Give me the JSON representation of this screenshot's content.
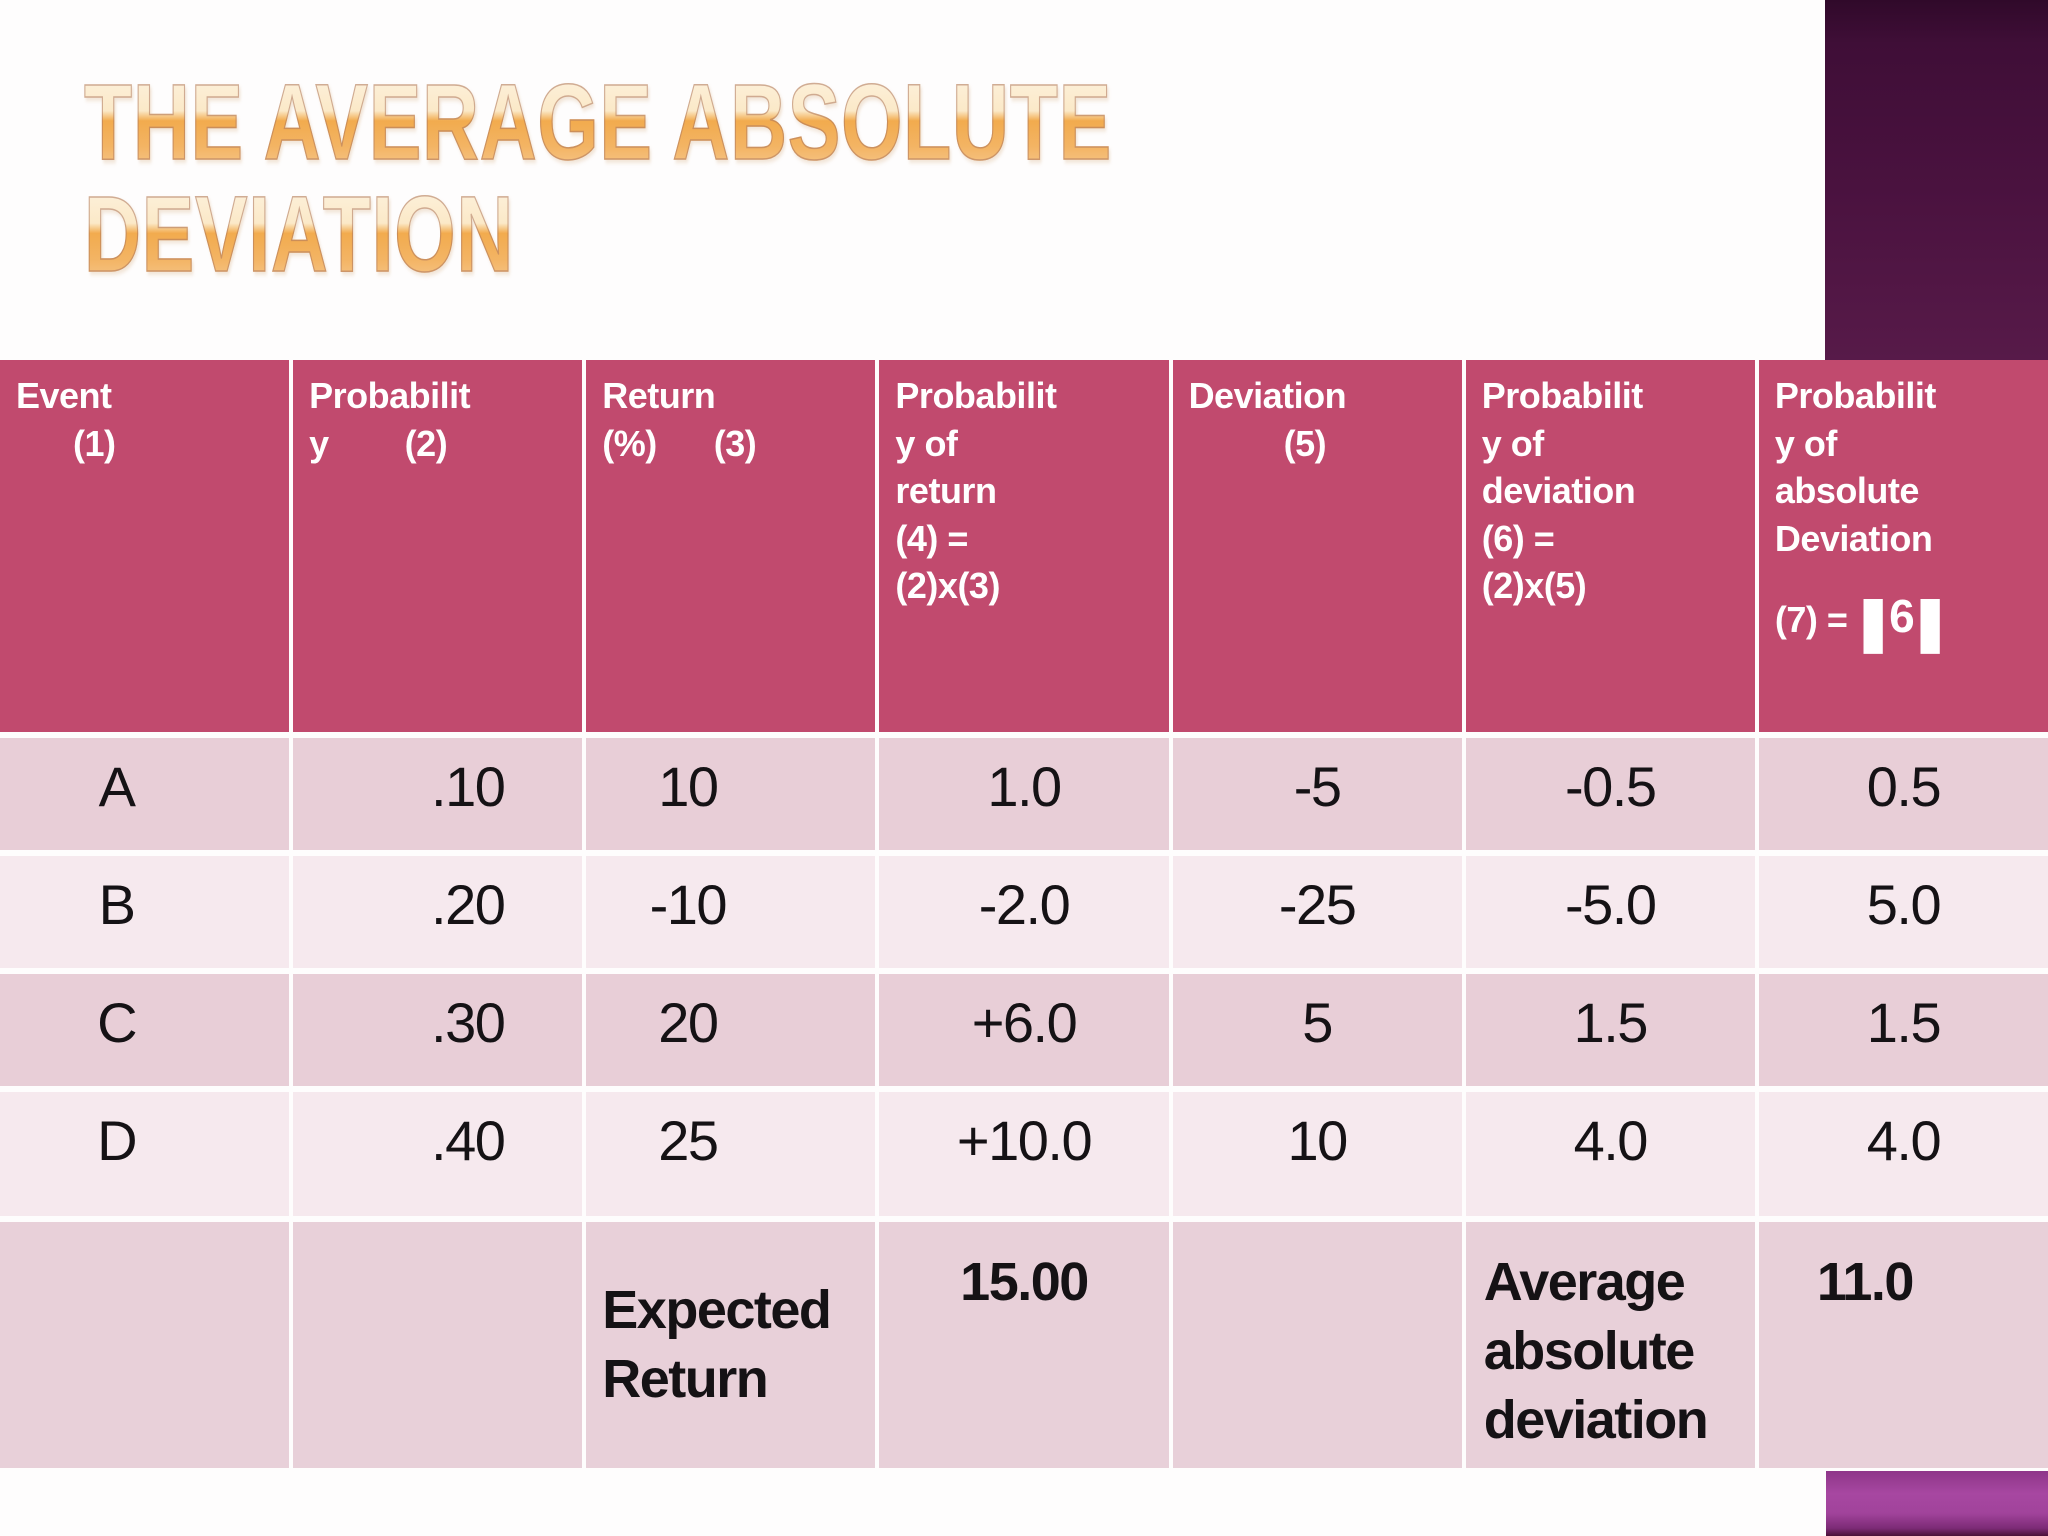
{
  "slide": {
    "title_line1": "THE AVERAGE ABSOLUTE",
    "title_line2": "DEVIATION"
  },
  "colors": {
    "header_bg": "#c14a6e",
    "row_odd_bg": "#e8ced7",
    "row_even_bg": "#f6e9ee",
    "summary_row_bg": "#e8d0d9",
    "gridline": "#ffffff",
    "title_gradient_top": "#fbe9c8",
    "title_gradient_bottom": "#f3ab4e",
    "corner_top_right": "#4a123f",
    "corner_bottom_right": "#a1439b",
    "body_text": "#151215",
    "header_text": "#ffffff"
  },
  "table": {
    "headers": [
      {
        "text": "Event\n      (1)"
      },
      {
        "text": "Probabilit\ny        (2)"
      },
      {
        "text": "Return\n(%)      (3)"
      },
      {
        "text": "Probabilit\ny of\nreturn\n(4) =\n(2)x(3)"
      },
      {
        "text": "Deviation\n          (5)"
      },
      {
        "text": "Probabilit\ny of\ndeviation\n(6) =\n(2)x(5)"
      },
      {
        "text": "Probabilit\ny of\nabsolute\nDeviation"
      }
    ],
    "header7_formula": {
      "prefix": "(7) = ",
      "bar_open": "|",
      "value": "6",
      "bar_close": "|"
    },
    "rows": [
      [
        "A",
        ".10",
        "10",
        "1.0",
        "-5",
        "-0.5",
        "0.5"
      ],
      [
        "B",
        ".20",
        "-10",
        "-2.0",
        "-25",
        "-5.0",
        "5.0"
      ],
      [
        "C",
        ".30",
        "20",
        "+6.0",
        "5",
        "1.5",
        "1.5"
      ],
      [
        "D",
        ".40",
        "25",
        "+10.0",
        "10",
        "4.0",
        "4.0"
      ]
    ],
    "summary": {
      "expected_return_label": "Expected\nReturn",
      "expected_return_value": "15.00",
      "avg_abs_dev_label": "Average\nabsolute\ndeviation",
      "avg_abs_dev_value": "11.0"
    }
  }
}
